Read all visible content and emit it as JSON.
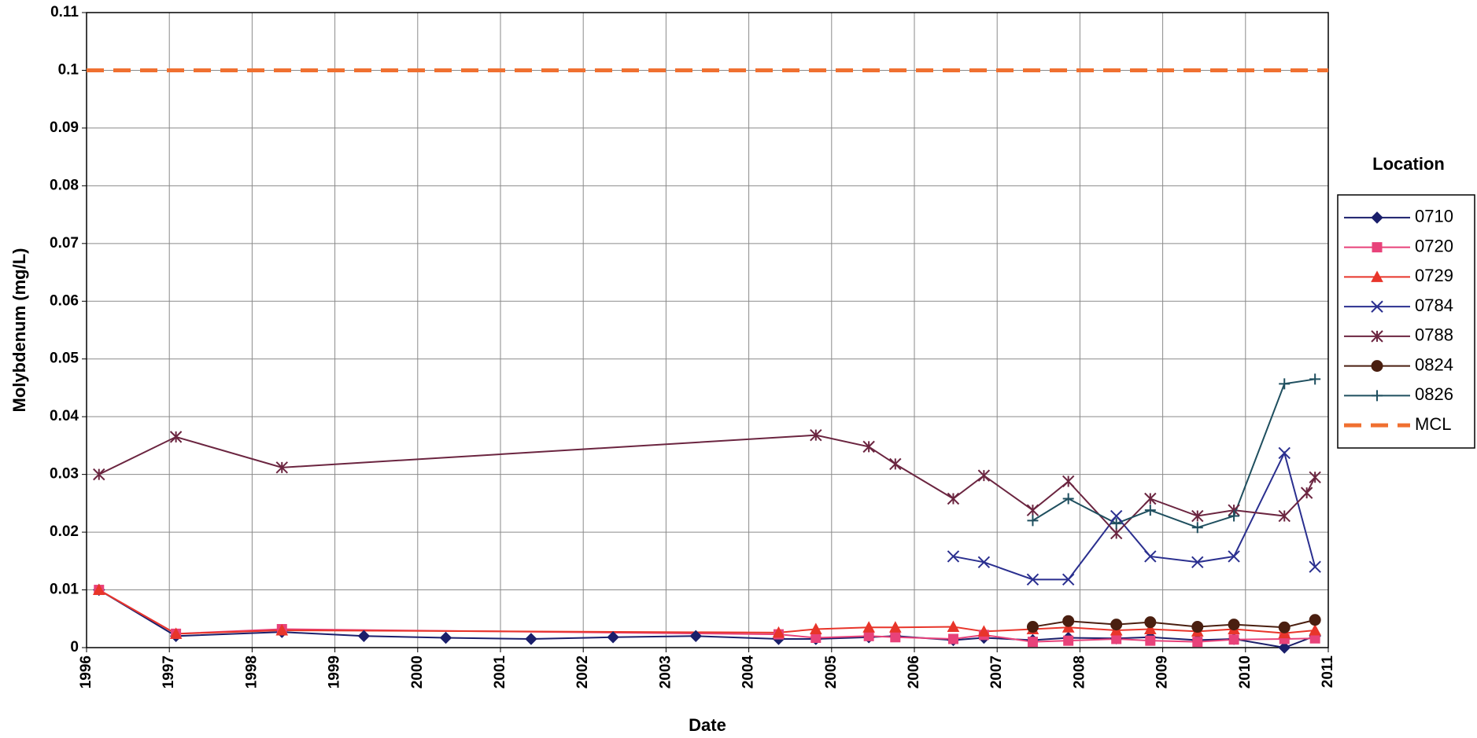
{
  "chart_data": {
    "type": "line",
    "x_label": "Date",
    "y_label": "Molybdenum (mg/L)",
    "legend_title": "Location",
    "xlim": [
      1996,
      2011
    ],
    "xticks": [
      1996,
      1997,
      1998,
      1999,
      2000,
      2001,
      2002,
      2003,
      2004,
      2005,
      2006,
      2007,
      2008,
      2009,
      2010,
      2011
    ],
    "ylim": [
      0,
      0.11
    ],
    "yticks": [
      0,
      0.01,
      0.02,
      0.03,
      0.04,
      0.05,
      0.06,
      0.07,
      0.08,
      0.09,
      0.1,
      0.11
    ],
    "grid": true,
    "legend": "right",
    "series": [
      {
        "name": "0710",
        "color": "#1a1f6b",
        "marker": "diamond",
        "x": [
          1996.15,
          1997.08,
          1998.36,
          1999.35,
          2000.34,
          2001.37,
          2002.36,
          2003.36,
          2004.36,
          2004.81,
          2005.45,
          2005.77,
          2006.47,
          2006.84,
          2007.43,
          2007.86,
          2008.44,
          2008.85,
          2009.42,
          2009.86,
          2010.47,
          2010.84
        ],
        "values": [
          0.01,
          0.002,
          0.0027,
          0.002,
          0.0017,
          0.0015,
          0.0018,
          0.002,
          0.0015,
          0.0015,
          0.0018,
          0.002,
          0.0013,
          0.0017,
          0.0013,
          0.0017,
          0.0016,
          0.0018,
          0.0013,
          0.0015,
          0,
          0.002
        ]
      },
      {
        "name": "0720",
        "color": "#e8427a",
        "marker": "square",
        "x": [
          1996.15,
          1997.08,
          1998.36,
          2004.36,
          2004.81,
          2005.45,
          2005.77,
          2006.47,
          2006.84,
          2007.43,
          2007.86,
          2008.44,
          2008.85,
          2009.42,
          2009.86,
          2010.47,
          2010.84
        ],
        "values": [
          0.01,
          0.0024,
          0.0032,
          0.0023,
          0.0017,
          0.002,
          0.0018,
          0.0015,
          0.0022,
          0.001,
          0.0012,
          0.0015,
          0.0012,
          0.001,
          0.0014,
          0.0015,
          0.0016
        ]
      },
      {
        "name": "0729",
        "color": "#e8352a",
        "marker": "triangle",
        "x": [
          1996.15,
          1997.08,
          1998.36,
          2004.36,
          2004.81,
          2005.45,
          2005.77,
          2006.47,
          2006.84,
          2007.43,
          2007.86,
          2008.44,
          2008.85,
          2009.42,
          2009.86,
          2010.47,
          2010.84
        ],
        "values": [
          0.01,
          0.0024,
          0.003,
          0.0026,
          0.0032,
          0.0035,
          0.0035,
          0.0036,
          0.0028,
          0.0032,
          0.0035,
          0.003,
          0.0032,
          0.0028,
          0.0032,
          0.0025,
          0.003
        ]
      },
      {
        "name": "0784",
        "color": "#2a2f8f",
        "marker": "x",
        "x": [
          2006.47,
          2006.84,
          2007.43,
          2007.86,
          2008.44,
          2008.85,
          2009.42,
          2009.86,
          2010.47,
          2010.84
        ],
        "values": [
          0.0158,
          0.0148,
          0.0118,
          0.0118,
          0.0228,
          0.0158,
          0.0148,
          0.0158,
          0.0337,
          0.014
        ]
      },
      {
        "name": "0788",
        "color": "#6b2540",
        "marker": "star",
        "x": [
          1996.15,
          1997.08,
          1998.36,
          2004.81,
          2005.45,
          2005.77,
          2006.47,
          2006.84,
          2007.43,
          2007.86,
          2008.44,
          2008.85,
          2009.42,
          2009.86,
          2010.47,
          2010.74,
          2010.84
        ],
        "values": [
          0.03,
          0.0365,
          0.0312,
          0.0368,
          0.0348,
          0.0318,
          0.0258,
          0.0298,
          0.0238,
          0.0288,
          0.0198,
          0.0258,
          0.0228,
          0.0238,
          0.0228,
          0.0268,
          0.0295
        ]
      },
      {
        "name": "0824",
        "color": "#4a1f10",
        "marker": "circle",
        "x": [
          2007.43,
          2007.86,
          2008.44,
          2008.85,
          2009.42,
          2009.86,
          2010.47,
          2010.84
        ],
        "values": [
          0.0036,
          0.0046,
          0.004,
          0.0044,
          0.0036,
          0.004,
          0.0035,
          0.0048
        ]
      },
      {
        "name": "0826",
        "color": "#1f4f5f",
        "marker": "plus",
        "x": [
          2007.43,
          2007.86,
          2008.44,
          2008.85,
          2009.42,
          2009.86,
          2010.47,
          2010.84
        ],
        "values": [
          0.022,
          0.0258,
          0.0215,
          0.0238,
          0.0208,
          0.0228,
          0.0457,
          0.0465
        ]
      },
      {
        "name": "MCL",
        "color": "#f07030",
        "marker": "none",
        "dashed": true,
        "x": [
          1996,
          2011
        ],
        "values": [
          0.1,
          0.1
        ]
      }
    ]
  }
}
